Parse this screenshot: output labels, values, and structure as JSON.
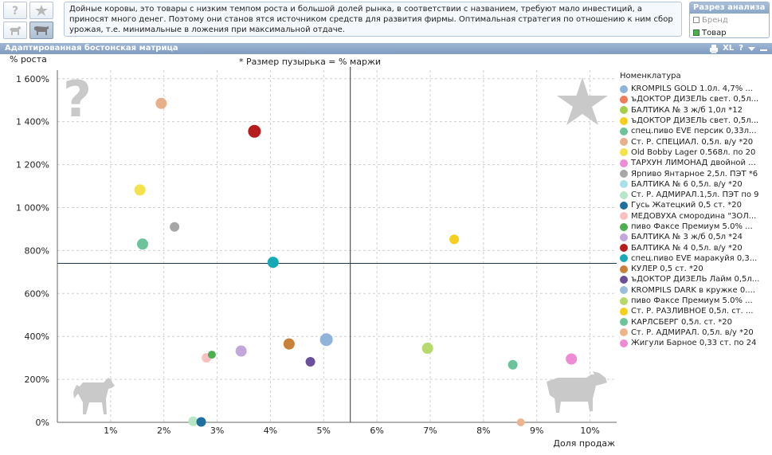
{
  "topbar": {
    "description": "Дойные коровы, это товары с низким темпом роста и большой долей рынка, в соответствии с названием, требуют мало инвестиций, а приносят много денег. Поэтому они станов ятся источником средств для развития фирмы. Оптимальная стратегия по отношению к ним сбор урожая, т.е. минимальные в ложения при максимальной отдаче.",
    "icons": [
      "question-icon",
      "star-icon",
      "dog-icon",
      "cow-icon"
    ]
  },
  "analysis": {
    "title": "Разрез анализа",
    "options": [
      {
        "label": "Бренд",
        "checked": false
      },
      {
        "label": "Товар",
        "checked": true
      }
    ]
  },
  "panel": {
    "title": "Адаптированная бостонская матрица",
    "tools": [
      "XL",
      "?"
    ]
  },
  "colors": {
    "accent": "#8aa6c7",
    "quadrant_line": "#1f3a4f",
    "grid": "#d0d0d0"
  },
  "chart_data": {
    "type": "scatter",
    "title": "* Размер пузырька = % маржи",
    "ylabel": "% роста",
    "xlabel": "Доля продаж",
    "xlim": [
      0.0,
      10.5
    ],
    "ylim": [
      0,
      1640
    ],
    "xticks": [
      "1%",
      "2%",
      "3%",
      "4%",
      "5%",
      "6%",
      "7%",
      "8%",
      "9%",
      "10%"
    ],
    "yticks": [
      "0%",
      "200%",
      "400%",
      "600%",
      "800%",
      "1 000%",
      "1 200%",
      "1 400%",
      "1 600%"
    ],
    "quadrant_lines": {
      "x": 5.5,
      "y": 740
    },
    "legend_title": "Номенклатура",
    "series": [
      {
        "name": "KROMPILS GOLD 1.0л. 4,7% ...",
        "color": "#8fb3d9",
        "x": 5.05,
        "y": 385,
        "size": 8
      },
      {
        "name": "ъДОКТОР ДИЗЕЛЬ свет. 0,5л...",
        "color": "#f07b5a",
        "x": null,
        "y": null,
        "size": 0
      },
      {
        "name": "БАЛТИКА № 3 ж/б 1,0л *12",
        "color": "#a5cf48",
        "x": null,
        "y": null,
        "size": 0
      },
      {
        "name": "ъДОКТОР ДИЗЕЛЬ свет. 0,5л...",
        "color": "#f6cf1c",
        "x": null,
        "y": null,
        "size": 0
      },
      {
        "name": "спец.пиво EVE персик 0,33л...",
        "color": "#6cc39a",
        "x": 1.6,
        "y": 830,
        "size": 7
      },
      {
        "name": "Ст. Р. СПЕЦИАЛ. 0,5л. в/у *20",
        "color": "#e8b08a",
        "x": 1.95,
        "y": 1485,
        "size": 7
      },
      {
        "name": "Old Bobby Lager 0.568л. по 20",
        "color": "#f4e24a",
        "x": 1.55,
        "y": 1082,
        "size": 7
      },
      {
        "name": "ТАРХУН ЛИМОНАД двойной ...",
        "color": "#ef8ad4",
        "x": null,
        "y": null,
        "size": 0
      },
      {
        "name": "Ярпиво Янтарное 2,5л. ПЭТ *6",
        "color": "#a6a6a6",
        "x": 2.2,
        "y": 910,
        "size": 6
      },
      {
        "name": "БАЛТИКА № 6 0,5л. в/у *20",
        "color": "#a8e0ea",
        "x": null,
        "y": null,
        "size": 0
      },
      {
        "name": "Ст. Р. АДМИРАЛ.1,5л. ПЭТ по 9",
        "color": "#b6e6c6",
        "x": 2.55,
        "y": 5,
        "size": 6
      },
      {
        "name": "Гусь Жатецкий 0,5 ст. *20",
        "color": "#1f6fa0",
        "x": 2.7,
        "y": 2,
        "size": 6
      },
      {
        "name": "МЕДОВУХА смородина \"ЗОЛ...",
        "color": "#f9c0c0",
        "x": 2.8,
        "y": 300,
        "size": 6
      },
      {
        "name": "пиво Факсе Премиум 5.0% ...",
        "color": "#4caf50",
        "x": 2.9,
        "y": 315,
        "size": 5
      },
      {
        "name": "БАЛТИКА № 3 ж/б 0,5л *24",
        "color": "#c3a7dc",
        "x": 3.45,
        "y": 332,
        "size": 7
      },
      {
        "name": "БАЛТИКА № 4 0,5л. в/у *20",
        "color": "#b71c1c",
        "x": 3.7,
        "y": 1355,
        "size": 8
      },
      {
        "name": "спец.пиво EVE маракуйя 0,3...",
        "color": "#15aab5",
        "x": 4.05,
        "y": 745,
        "size": 7
      },
      {
        "name": "КУЛЕР 0,5 ст. *20",
        "color": "#c98038",
        "x": 4.35,
        "y": 365,
        "size": 7
      },
      {
        "name": "ъДОКТОР ДИЗЕЛЬ Лайм 0,5л...",
        "color": "#6a4f9a",
        "x": 4.75,
        "y": 282,
        "size": 6
      },
      {
        "name": "KROMPILS DARK в кружке 0....",
        "color": "#9bbde0",
        "x": null,
        "y": null,
        "size": 0
      },
      {
        "name": "пиво Факсе Премиум 5.0% ...",
        "color": "#b5d96a",
        "x": 6.95,
        "y": 345,
        "size": 7
      },
      {
        "name": "Ст. Р. РАЗЛИВНОЕ 0,5л. ст. ...",
        "color": "#f6cf1c",
        "x": 7.45,
        "y": 852,
        "size": 6
      },
      {
        "name": "КАРЛСБЕРГ 0,5л. ст. *20",
        "color": "#6cc39a",
        "x": 8.55,
        "y": 268,
        "size": 6
      },
      {
        "name": "Ст. Р. АДМИРАЛ. 0,5л. в/у *20",
        "color": "#f0b48c",
        "x": 8.7,
        "y": 0,
        "size": 5
      },
      {
        "name": "Жигули Барное 0,33 ст. по 24",
        "color": "#ef8ad4",
        "x": 9.65,
        "y": 295,
        "size": 7
      }
    ]
  }
}
